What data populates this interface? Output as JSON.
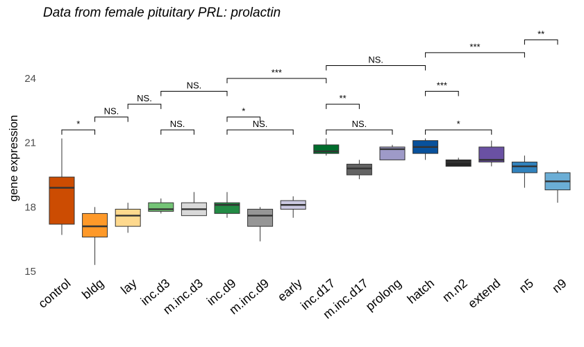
{
  "chart_data": {
    "type": "boxplot",
    "title": "Data from female pituitary PRL: prolactin",
    "ylabel": "gene expression",
    "xlabel": "",
    "ylim": [
      15,
      27
    ],
    "yticks": [
      15,
      18,
      21,
      24
    ],
    "grid": false,
    "legend": "none",
    "categories": [
      "control",
      "bldg",
      "lay",
      "inc.d3",
      "m.inc.d3",
      "inc.d9",
      "m.inc.d9",
      "early",
      "inc.d17",
      "m.inc.d17",
      "prolong",
      "hatch",
      "m.n2",
      "extend",
      "n5",
      "n9"
    ],
    "boxes": [
      {
        "label": "control",
        "color": "#cc4c02",
        "min": 16.7,
        "q1": 17.2,
        "median": 18.9,
        "q3": 19.4,
        "max": 21.2
      },
      {
        "label": "bldg",
        "color": "#fe9929",
        "min": 15.3,
        "q1": 16.6,
        "median": 17.1,
        "q3": 17.7,
        "max": 18.0
      },
      {
        "label": "lay",
        "color": "#fed98e",
        "min": 16.8,
        "q1": 17.1,
        "median": 17.6,
        "q3": 17.9,
        "max": 18.2
      },
      {
        "label": "inc.d3",
        "color": "#74c476",
        "min": 17.7,
        "q1": 17.8,
        "median": 17.9,
        "q3": 18.2,
        "max": 18.4
      },
      {
        "label": "m.inc.d3",
        "color": "#d9d9d9",
        "min": 17.6,
        "q1": 17.6,
        "median": 17.9,
        "q3": 18.2,
        "max": 18.7
      },
      {
        "label": "inc.d9",
        "color": "#238b45",
        "min": 17.5,
        "q1": 17.7,
        "median": 18.1,
        "q3": 18.2,
        "max": 18.7
      },
      {
        "label": "m.inc.d9",
        "color": "#969696",
        "min": 16.4,
        "q1": 17.1,
        "median": 17.6,
        "q3": 17.9,
        "max": 18.0
      },
      {
        "label": "early",
        "color": "#cbc9e2",
        "min": 17.5,
        "q1": 17.9,
        "median": 18.1,
        "q3": 18.3,
        "max": 18.5
      },
      {
        "label": "inc.d17",
        "color": "#006d2c",
        "min": 20.4,
        "q1": 20.5,
        "median": 20.6,
        "q3": 20.9,
        "max": 21.2
      },
      {
        "label": "m.inc.d17",
        "color": "#636363",
        "min": 19.3,
        "q1": 19.5,
        "median": 19.8,
        "q3": 20.0,
        "max": 20.2
      },
      {
        "label": "prolong",
        "color": "#9e9ac8",
        "min": 20.2,
        "q1": 20.2,
        "median": 20.7,
        "q3": 20.8,
        "max": 20.9
      },
      {
        "label": "hatch",
        "color": "#08519c",
        "min": 20.2,
        "q1": 20.5,
        "median": 20.8,
        "q3": 21.1,
        "max": 21.2
      },
      {
        "label": "m.n2",
        "color": "#252525",
        "min": 19.9,
        "q1": 19.9,
        "median": 20.1,
        "q3": 20.2,
        "max": 20.3
      },
      {
        "label": "extend",
        "color": "#6a51a3",
        "min": 19.9,
        "q1": 20.1,
        "median": 20.2,
        "q3": 20.8,
        "max": 21.1
      },
      {
        "label": "n5",
        "color": "#3182bd",
        "min": 18.9,
        "q1": 19.6,
        "median": 19.9,
        "q3": 20.1,
        "max": 20.4
      },
      {
        "label": "n9",
        "color": "#6baed6",
        "min": 18.2,
        "q1": 18.8,
        "median": 19.2,
        "q3": 19.6,
        "max": 19.7
      }
    ],
    "comparisons": [
      {
        "from": "control",
        "to": "bldg",
        "y": 21.6,
        "label": "*"
      },
      {
        "from": "bldg",
        "to": "lay",
        "y": 22.2,
        "label": "NS."
      },
      {
        "from": "lay",
        "to": "inc.d3",
        "y": 22.8,
        "label": "NS."
      },
      {
        "from": "inc.d3",
        "to": "m.inc.d3",
        "y": 21.6,
        "label": "NS."
      },
      {
        "from": "inc.d3",
        "to": "inc.d9",
        "y": 23.4,
        "label": "NS."
      },
      {
        "from": "inc.d9",
        "to": "m.inc.d9",
        "y": 22.2,
        "label": "*"
      },
      {
        "from": "inc.d9",
        "to": "early",
        "y": 21.6,
        "label": "NS."
      },
      {
        "from": "inc.d9",
        "to": "inc.d17",
        "y": 24.0,
        "label": "***"
      },
      {
        "from": "inc.d17",
        "to": "m.inc.d17",
        "y": 22.8,
        "label": "**"
      },
      {
        "from": "inc.d17",
        "to": "prolong",
        "y": 21.6,
        "label": "NS."
      },
      {
        "from": "inc.d17",
        "to": "hatch",
        "y": 24.6,
        "label": "NS."
      },
      {
        "from": "hatch",
        "to": "m.n2",
        "y": 23.4,
        "label": "***"
      },
      {
        "from": "hatch",
        "to": "extend",
        "y": 21.6,
        "label": "*"
      },
      {
        "from": "hatch",
        "to": "n5",
        "y": 25.2,
        "label": "***"
      },
      {
        "from": "n5",
        "to": "n9",
        "y": 25.8,
        "label": "**"
      }
    ]
  }
}
